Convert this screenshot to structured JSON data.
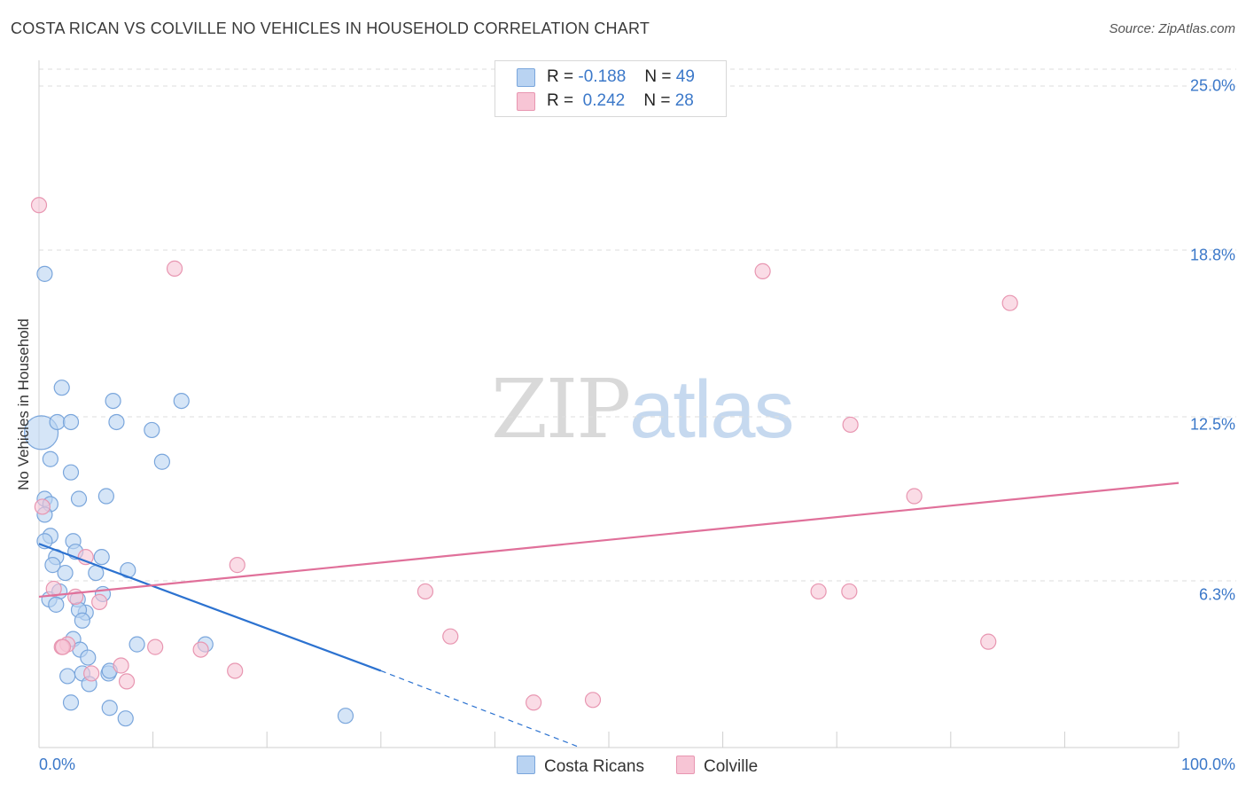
{
  "title": "COSTA RICAN VS COLVILLE NO VEHICLES IN HOUSEHOLD CORRELATION CHART",
  "source": "Source: ZipAtlas.com",
  "watermark": {
    "part1": "ZIP",
    "part2": "atlas"
  },
  "legend_top": [
    {
      "r_label": "R =",
      "r_value": "-0.188",
      "n_label": "N =",
      "n_value": "49"
    },
    {
      "r_label": "R =",
      "r_value": "0.242",
      "n_label": "N =",
      "n_value": "28"
    }
  ],
  "legend_bottom": [
    "Costa Ricans",
    "Colville"
  ],
  "colors": {
    "blue_fill": "#b9d3f2",
    "blue_stroke": "#7aa6dc",
    "blue_line": "#2c72d0",
    "pink_fill": "#f7c5d5",
    "pink_stroke": "#e896b1",
    "pink_line": "#e0709a",
    "tick_text": "#3b78c9",
    "grid": "#dedede"
  },
  "chart_data": {
    "type": "scatter",
    "title": "COSTA RICAN VS COLVILLE NO VEHICLES IN HOUSEHOLD CORRELATION CHART",
    "xlabel": "",
    "ylabel": "No Vehicles in Household",
    "xlim": [
      0,
      100
    ],
    "ylim": [
      0,
      26
    ],
    "x_tick_labels": [
      "0.0%",
      "100.0%"
    ],
    "y_ticks": [
      6.3,
      12.5,
      18.8,
      25.0
    ],
    "y_tick_labels": [
      "6.3%",
      "12.5%",
      "18.8%",
      "25.0%"
    ],
    "grid": true,
    "legend_position": "top-center",
    "series": [
      {
        "name": "Costa Ricans",
        "color": "#b9d3f2",
        "x": [
          0.2,
          0.5,
          2.0,
          6.5,
          12.5,
          1.6,
          2.8,
          6.8,
          9.9,
          1.0,
          10.8,
          2.8,
          0.5,
          3.5,
          5.9,
          1.0,
          0.5,
          1.0,
          3.0,
          0.5,
          1.5,
          1.2,
          2.3,
          5.5,
          3.2,
          7.8,
          5.0,
          0.9,
          1.8,
          1.5,
          3.4,
          5.6,
          4.1,
          3.5,
          3.8,
          3.0,
          14.6,
          3.6,
          4.3,
          8.6,
          2.5,
          6.1,
          3.8,
          4.4,
          6.2,
          2.8,
          6.2,
          26.9,
          7.6
        ],
        "y": [
          11.9,
          17.9,
          13.6,
          13.1,
          13.1,
          12.3,
          12.3,
          12.3,
          12.0,
          10.9,
          10.8,
          10.4,
          9.4,
          9.4,
          9.5,
          9.2,
          8.8,
          8.0,
          7.8,
          7.8,
          7.2,
          6.9,
          6.6,
          7.2,
          7.4,
          6.7,
          6.6,
          5.6,
          5.9,
          5.4,
          5.6,
          5.8,
          5.1,
          5.2,
          4.8,
          4.1,
          3.9,
          3.7,
          3.4,
          3.9,
          2.7,
          2.8,
          2.8,
          2.4,
          2.9,
          1.7,
          1.5,
          1.2,
          1.1
        ]
      },
      {
        "name": "Colville",
        "color": "#f7c5d5",
        "x": [
          0.0,
          11.9,
          63.5,
          85.2,
          71.2,
          76.8,
          0.3,
          1.3,
          4.1,
          17.4,
          68.4,
          71.1,
          33.9,
          3.2,
          5.3,
          36.1,
          83.3,
          2.5,
          2.0,
          2.1,
          10.2,
          14.2,
          7.2,
          17.2,
          4.6,
          7.7,
          48.6,
          43.4
        ],
        "y": [
          20.5,
          18.1,
          18.0,
          16.8,
          12.2,
          9.5,
          9.1,
          6.0,
          7.2,
          6.9,
          5.9,
          5.9,
          5.9,
          5.7,
          5.5,
          4.2,
          4.0,
          3.9,
          3.8,
          3.8,
          3.8,
          3.7,
          3.1,
          2.9,
          2.8,
          2.5,
          1.8,
          1.7
        ]
      }
    ],
    "trendlines": [
      {
        "series": "Costa Ricans",
        "x": [
          0,
          30
        ],
        "y": [
          7.7,
          2.9
        ],
        "dashed_extension_to": [
          47.5,
          0
        ]
      },
      {
        "series": "Colville",
        "x": [
          0,
          100
        ],
        "y": [
          5.7,
          10.0
        ]
      }
    ]
  }
}
